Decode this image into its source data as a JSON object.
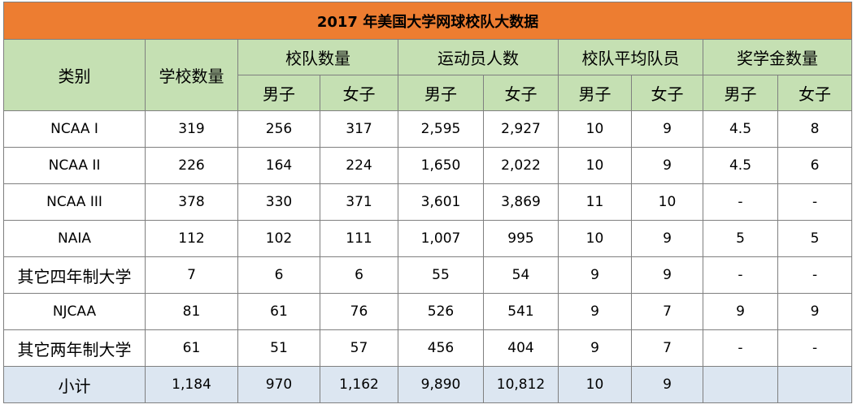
{
  "title": "2017 年美国大学网球校队大数据",
  "headers": {
    "category": "类别",
    "school_count": "学校数量",
    "team_count": "校队数量",
    "athlete_count": "运动员人数",
    "avg_roster": "校队平均队员",
    "scholarships": "奖学金数量",
    "men": "男子",
    "women": "女子"
  },
  "rows": [
    {
      "category": "NCAA I",
      "schools": "319",
      "teams_m": "256",
      "teams_w": "317",
      "athletes_m": "2,595",
      "athletes_w": "2,927",
      "avg_m": "10",
      "avg_w": "9",
      "sch_m": "4.5",
      "sch_w": "8"
    },
    {
      "category": "NCAA II",
      "schools": "226",
      "teams_m": "164",
      "teams_w": "224",
      "athletes_m": "1,650",
      "athletes_w": "2,022",
      "avg_m": "10",
      "avg_w": "9",
      "sch_m": "4.5",
      "sch_w": "6"
    },
    {
      "category": "NCAA III",
      "schools": "378",
      "teams_m": "330",
      "teams_w": "371",
      "athletes_m": "3,601",
      "athletes_w": "3,869",
      "avg_m": "11",
      "avg_w": "10",
      "sch_m": "-",
      "sch_w": "-"
    },
    {
      "category": "NAIA",
      "schools": "112",
      "teams_m": "102",
      "teams_w": "111",
      "athletes_m": "1,007",
      "athletes_w": "995",
      "avg_m": "10",
      "avg_w": "9",
      "sch_m": "5",
      "sch_w": "5"
    },
    {
      "category": "其它四年制大学",
      "schools": "7",
      "teams_m": "6",
      "teams_w": "6",
      "athletes_m": "55",
      "athletes_w": "54",
      "avg_m": "9",
      "avg_w": "9",
      "sch_m": "-",
      "sch_w": "-"
    },
    {
      "category": "NJCAA",
      "schools": "81",
      "teams_m": "61",
      "teams_w": "76",
      "athletes_m": "526",
      "athletes_w": "541",
      "avg_m": "9",
      "avg_w": "7",
      "sch_m": "9",
      "sch_w": "9"
    },
    {
      "category": "其它两年制大学",
      "schools": "61",
      "teams_m": "51",
      "teams_w": "57",
      "athletes_m": "456",
      "athletes_w": "404",
      "avg_m": "9",
      "avg_w": "7",
      "sch_m": "-",
      "sch_w": "-"
    }
  ],
  "total": {
    "category": "小计",
    "schools": "1,184",
    "teams_m": "970",
    "teams_w": "1,162",
    "athletes_m": "9,890",
    "athletes_w": "10,812",
    "avg_m": "10",
    "avg_w": "9",
    "sch_m": "",
    "sch_w": ""
  },
  "colors": {
    "title_fill": "#ed7d31",
    "header_fill": "#c5e0b3",
    "total_fill": "#dce6f1",
    "border": "#7f7f7f"
  }
}
